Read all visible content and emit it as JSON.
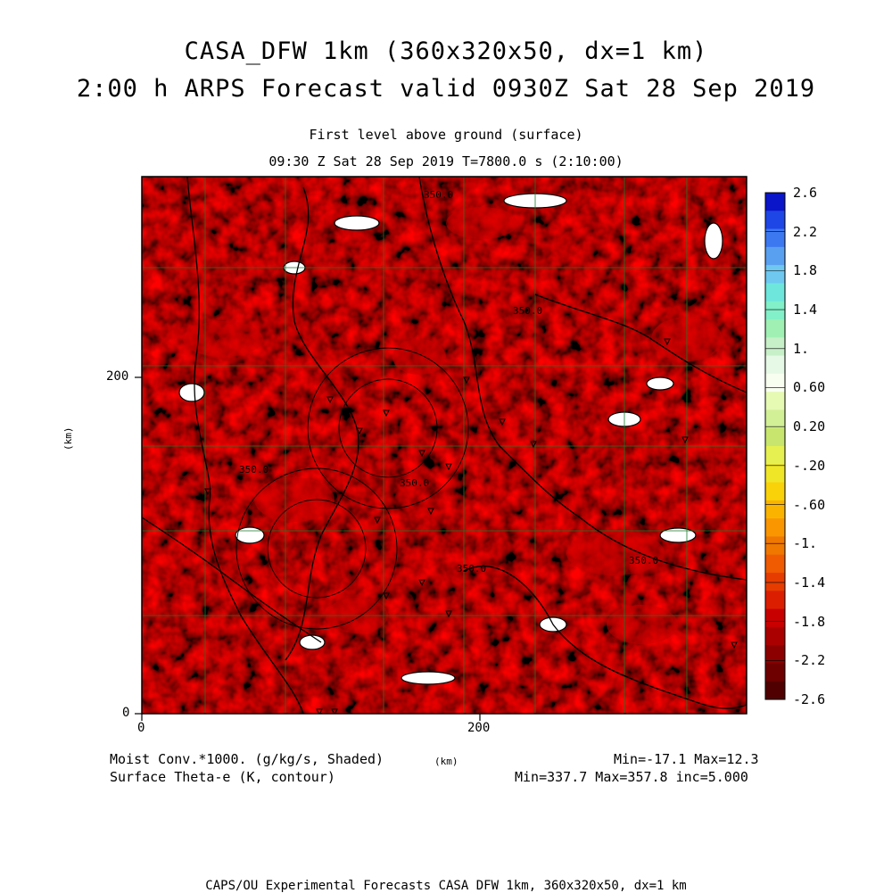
{
  "title": {
    "line1": "CASA_DFW 1km (360x320x50, dx=1 km)",
    "line2": "2:00 h ARPS Forecast valid 0930Z Sat 28 Sep 2019"
  },
  "subtitle": {
    "line1": "First level above ground (surface)",
    "line2": "09:30 Z Sat 28 Sep 2019   T=7800.0 s (2:10:00)"
  },
  "axes": {
    "x_ticks": [
      "0",
      "200"
    ],
    "y_ticks": [
      "200",
      "0"
    ],
    "x_unit": "(km)",
    "y_unit": "(km)"
  },
  "colorbar": {
    "labels": [
      "2.6",
      "2.2",
      "1.8",
      "1.4",
      "1.",
      "0.60",
      "0.20",
      "-.20",
      "-.60",
      "-1.",
      "-1.4",
      "-1.8",
      "-2.2",
      "-2.6"
    ],
    "colors": [
      "#0a14c8",
      "#1e46e6",
      "#3c78f0",
      "#5aa0f0",
      "#6ec8f0",
      "#6ee6dc",
      "#82f0c8",
      "#a0f0b4",
      "#c8f0c8",
      "#e6f8e6",
      "#f8fff0",
      "#e6fab4",
      "#d2f096",
      "#c8e66e",
      "#e6f050",
      "#f0e628",
      "#fad20a",
      "#fab400",
      "#fa9600",
      "#f07800",
      "#f05a00",
      "#e63c00",
      "#dc1e00",
      "#c80000",
      "#aa0000",
      "#8c0000",
      "#6e0000",
      "#500000"
    ]
  },
  "contour_labels": [
    "350.0",
    "350.0",
    "350.0",
    "350.0",
    "350.0",
    "350.0"
  ],
  "footer": {
    "field1": "Moist Conv.*1000. (g/kg/s, Shaded)",
    "field2": "Surface Theta-e (K, contour)",
    "unit": "(km)",
    "stats1": "Min=-17.1 Max=12.3",
    "stats2": "Min=337.7 Max=357.8 inc=5.000",
    "credit": "CAPS/OU Experimental Forecasts  CASA DFW 1km, 360x320x50, dx=1 km"
  }
}
